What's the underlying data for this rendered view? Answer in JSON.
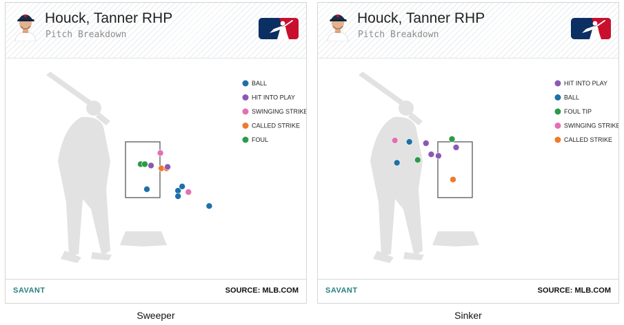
{
  "colors": {
    "ball": "#1f6fa8",
    "hit_into_play": "#8b59b3",
    "swinging_strike": "#e36fb4",
    "called_strike": "#ee7a2c",
    "foul": "#2c9a48",
    "foul_tip": "#2c9a48",
    "silhouette": "#e2e2e2",
    "savant": "#2a7f80"
  },
  "panels": [
    {
      "header": {
        "name": "Houck, Tanner RHP",
        "subtitle": "Pitch Breakdown"
      },
      "legend": [
        {
          "label": "BALL",
          "color": "#1f6fa8"
        },
        {
          "label": "HIT INTO PLAY",
          "color": "#8b59b3"
        },
        {
          "label": "SWINGING STRIKE",
          "color": "#e36fb4"
        },
        {
          "label": "CALLED STRIKE",
          "color": "#ee7a2c"
        },
        {
          "label": "FOUL",
          "color": "#2c9a48"
        }
      ],
      "pitches": [
        {
          "x": -0.1,
          "z": 2.7,
          "result": "FOUL",
          "color": "#2c9a48"
        },
        {
          "x": 0.1,
          "z": 2.7,
          "result": "FOUL",
          "color": "#2c9a48"
        },
        {
          "x": 0.4,
          "z": 2.65,
          "result": "HIT INTO PLAY",
          "color": "#8b59b3"
        },
        {
          "x": 0.85,
          "z": 3.1,
          "result": "SWINGING STRIKE",
          "color": "#e36fb4"
        },
        {
          "x": 0.9,
          "z": 2.55,
          "result": "CALLED STRIKE",
          "color": "#ee7a2c"
        },
        {
          "x": 1.15,
          "z": 2.55,
          "result": "CALLED STRIKE",
          "color": "#ee7a2c"
        },
        {
          "x": 1.2,
          "z": 2.6,
          "result": "HIT INTO PLAY",
          "color": "#8b59b3"
        },
        {
          "x": 0.2,
          "z": 1.8,
          "result": "BALL",
          "color": "#1f6fa8"
        },
        {
          "x": 1.7,
          "z": 1.75,
          "result": "BALL",
          "color": "#1f6fa8"
        },
        {
          "x": 1.9,
          "z": 1.9,
          "result": "BALL",
          "color": "#1f6fa8"
        },
        {
          "x": 1.7,
          "z": 1.55,
          "result": "BALL",
          "color": "#1f6fa8"
        },
        {
          "x": 2.2,
          "z": 1.7,
          "result": "SWINGING STRIKE",
          "color": "#e36fb4"
        },
        {
          "x": 3.2,
          "z": 1.2,
          "result": "BALL",
          "color": "#1f6fa8"
        }
      ],
      "footer": {
        "brand": "SAVANT",
        "source": "SOURCE: MLB.COM"
      },
      "caption": "Sweeper"
    },
    {
      "header": {
        "name": "Houck, Tanner RHP",
        "subtitle": "Pitch Breakdown"
      },
      "legend": [
        {
          "label": "HIT INTO PLAY",
          "color": "#8b59b3"
        },
        {
          "label": "BALL",
          "color": "#1f6fa8"
        },
        {
          "label": "FOUL TIP",
          "color": "#2c9a48"
        },
        {
          "label": "SWINGING STRIKE",
          "color": "#e36fb4"
        },
        {
          "label": "CALLED STRIKE",
          "color": "#ee7a2c"
        }
      ],
      "pitches": [
        {
          "x": -2.9,
          "z": 3.55,
          "result": "SWINGING STRIKE",
          "color": "#e36fb4"
        },
        {
          "x": -2.2,
          "z": 3.5,
          "result": "BALL",
          "color": "#1f6fa8"
        },
        {
          "x": -2.8,
          "z": 2.75,
          "result": "BALL",
          "color": "#1f6fa8"
        },
        {
          "x": -1.8,
          "z": 2.85,
          "result": "FOUL TIP",
          "color": "#2c9a48"
        },
        {
          "x": -1.4,
          "z": 3.45,
          "result": "HIT INTO PLAY",
          "color": "#8b59b3"
        },
        {
          "x": -1.15,
          "z": 3.05,
          "result": "HIT INTO PLAY",
          "color": "#8b59b3"
        },
        {
          "x": -0.8,
          "z": 3.0,
          "result": "HIT INTO PLAY",
          "color": "#8b59b3"
        },
        {
          "x": -0.15,
          "z": 3.6,
          "result": "FOUL TIP",
          "color": "#2c9a48"
        },
        {
          "x": 0.05,
          "z": 3.3,
          "result": "HIT INTO PLAY",
          "color": "#8b59b3"
        },
        {
          "x": -0.1,
          "z": 2.15,
          "result": "CALLED STRIKE",
          "color": "#ee7a2c"
        }
      ],
      "footer": {
        "brand": "SAVANT",
        "source": "SOURCE: MLB.COM"
      },
      "caption": "Sinker"
    }
  ]
}
